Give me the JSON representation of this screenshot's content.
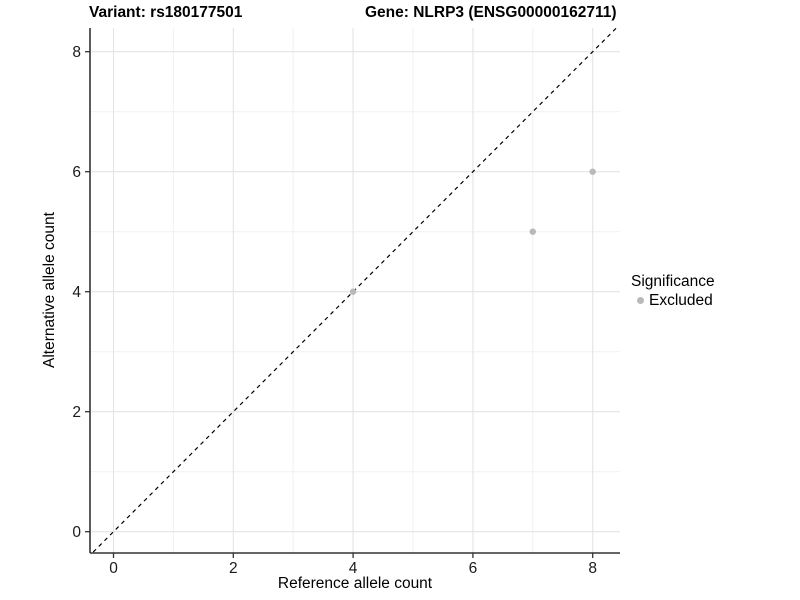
{
  "chart_data": {
    "type": "scatter",
    "titles": {
      "left": "Variant: rs180177501",
      "right": "Gene: NLRP3 (ENSG00000162711)"
    },
    "xlabel": "Reference allele count",
    "ylabel": "Alternative allele count",
    "xlim": [
      -0.39,
      8.45
    ],
    "ylim": [
      -0.36,
      8.4
    ],
    "x_ticks": [
      0,
      2,
      4,
      6,
      8
    ],
    "y_ticks": [
      0,
      2,
      4,
      6,
      8
    ],
    "x_minor_ticks": [
      1,
      3,
      5,
      7
    ],
    "y_minor_ticks": [
      1,
      3,
      5,
      7
    ],
    "grid": true,
    "reference_line": {
      "type": "identity",
      "slope": 1,
      "intercept": 0,
      "style": "dashed",
      "color": "#000000"
    },
    "series": [
      {
        "name": "Excluded",
        "color": "#b9b9b9",
        "points": [
          {
            "x": 4,
            "y": 4
          },
          {
            "x": 7,
            "y": 5
          },
          {
            "x": 8,
            "y": 6
          }
        ]
      }
    ],
    "legend": {
      "title": "Significance",
      "position": "right",
      "items": [
        {
          "label": "Excluded",
          "color": "#b9b9b9"
        }
      ]
    },
    "colors": {
      "background": "#ffffff",
      "grid_major": "#e4e4e4",
      "grid_minor": "#f1f1f1",
      "axis_line": "#333333",
      "tick": "#333333",
      "tick_label": "#1a1a1a",
      "point": "#b9b9b9"
    }
  }
}
